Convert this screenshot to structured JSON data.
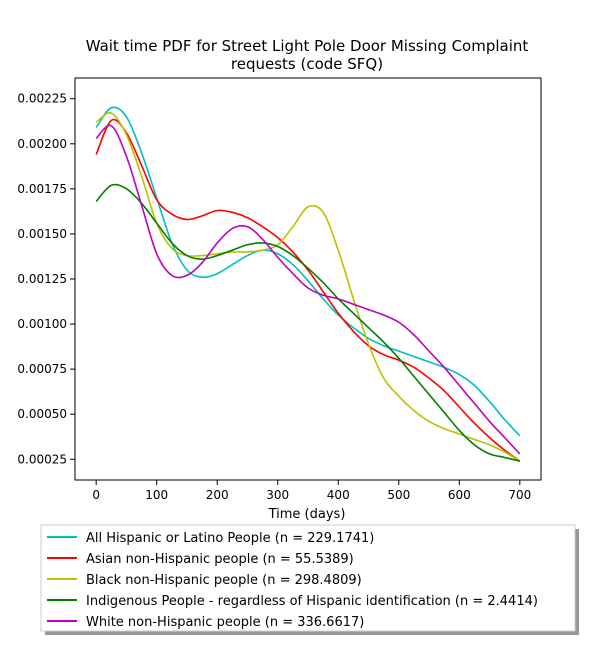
{
  "chart_data": {
    "type": "line",
    "title_line1": "Wait time PDF for Street Light Pole Door Missing Complaint",
    "title_line2": "requests (code SFQ)",
    "xlabel": "Time (days)",
    "ylabel": "",
    "xlim": [
      -35,
      735
    ],
    "ylim": [
      0.000135,
      0.002365
    ],
    "xticks": [
      0,
      100,
      200,
      300,
      400,
      500,
      600,
      700
    ],
    "xtick_labels": [
      "0",
      "100",
      "200",
      "300",
      "400",
      "500",
      "600",
      "700"
    ],
    "yticks": [
      0.00025,
      0.0005,
      0.00075,
      0.001,
      0.00125,
      0.0015,
      0.00175,
      0.002,
      0.00225
    ],
    "ytick_labels": [
      "0.00025",
      "0.00050",
      "0.00075",
      "0.00100",
      "0.00125",
      "0.00150",
      "0.00175",
      "0.00200",
      "0.00225"
    ],
    "grid": false,
    "legend_position": "below-plot",
    "series": [
      {
        "name": "All Hispanic or Latino People (n = 229.1741)",
        "color": "#00bfbf",
        "x": [
          0,
          25,
          50,
          75,
          100,
          125,
          150,
          175,
          200,
          225,
          250,
          275,
          300,
          325,
          350,
          375,
          400,
          425,
          450,
          475,
          500,
          525,
          550,
          575,
          600,
          625,
          650,
          675,
          700
        ],
        "y": [
          0.00209,
          0.0022,
          0.00215,
          0.00195,
          0.0017,
          0.00145,
          0.0013,
          0.00126,
          0.00128,
          0.00133,
          0.00138,
          0.00141,
          0.00139,
          0.00133,
          0.00124,
          0.00114,
          0.00105,
          0.00098,
          0.00092,
          0.00088,
          0.00085,
          0.00082,
          0.00079,
          0.00076,
          0.00072,
          0.00066,
          0.00057,
          0.00047,
          0.00038
        ]
      },
      {
        "name": "Asian non-Hispanic people (n = 55.5389)",
        "color": "#ff0000",
        "x": [
          0,
          25,
          50,
          75,
          100,
          125,
          150,
          175,
          200,
          225,
          250,
          275,
          300,
          325,
          350,
          375,
          400,
          425,
          450,
          475,
          500,
          525,
          550,
          575,
          600,
          625,
          650,
          675,
          700
        ],
        "y": [
          0.00194,
          0.00213,
          0.00206,
          0.00188,
          0.00169,
          0.00161,
          0.00158,
          0.0016,
          0.00163,
          0.00162,
          0.00159,
          0.00154,
          0.00148,
          0.0014,
          0.0013,
          0.00118,
          0.00106,
          0.00096,
          0.00088,
          0.00083,
          0.0008,
          0.00076,
          0.0007,
          0.00063,
          0.00054,
          0.00045,
          0.00037,
          0.0003,
          0.00024
        ]
      },
      {
        "name": "Black non-Hispanic people (n = 298.4809)",
        "color": "#bfbf00",
        "x": [
          0,
          25,
          50,
          75,
          100,
          125,
          150,
          175,
          200,
          225,
          250,
          275,
          300,
          325,
          350,
          375,
          400,
          425,
          450,
          475,
          500,
          525,
          550,
          575,
          600,
          625,
          650,
          675,
          700
        ],
        "y": [
          0.00212,
          0.00217,
          0.00205,
          0.00182,
          0.00156,
          0.00142,
          0.00138,
          0.00138,
          0.00139,
          0.0014,
          0.0014,
          0.00141,
          0.00144,
          0.00154,
          0.00165,
          0.00162,
          0.00141,
          0.00114,
          0.00089,
          0.0007,
          0.0006,
          0.00052,
          0.00046,
          0.00042,
          0.00039,
          0.00036,
          0.00033,
          0.00029,
          0.00024
        ]
      },
      {
        "name": "Indigenous People - regardless of Hispanic identification (n = 2.4414)",
        "color": "#008000",
        "x": [
          0,
          25,
          50,
          75,
          100,
          125,
          150,
          175,
          200,
          225,
          250,
          275,
          300,
          325,
          350,
          375,
          400,
          425,
          450,
          475,
          500,
          525,
          550,
          575,
          600,
          625,
          650,
          675,
          700
        ],
        "y": [
          0.00168,
          0.00177,
          0.00175,
          0.00167,
          0.00156,
          0.00145,
          0.00138,
          0.00136,
          0.00138,
          0.00141,
          0.00144,
          0.00145,
          0.00143,
          0.00138,
          0.00131,
          0.00123,
          0.00114,
          0.00106,
          0.00098,
          0.0009,
          0.00081,
          0.00071,
          0.00061,
          0.00051,
          0.00041,
          0.00033,
          0.00028,
          0.00026,
          0.00024
        ]
      },
      {
        "name": "White non-Hispanic people (n = 336.6617)",
        "color": "#bf00bf",
        "x": [
          0,
          25,
          50,
          75,
          100,
          125,
          150,
          175,
          200,
          225,
          250,
          275,
          300,
          325,
          350,
          375,
          400,
          425,
          450,
          475,
          500,
          525,
          550,
          575,
          600,
          625,
          650,
          675,
          700
        ],
        "y": [
          0.00203,
          0.0021,
          0.00193,
          0.00166,
          0.00139,
          0.00127,
          0.00127,
          0.00134,
          0.00145,
          0.00153,
          0.00154,
          0.00147,
          0.00137,
          0.00128,
          0.0012,
          0.00116,
          0.00114,
          0.00111,
          0.00108,
          0.00105,
          0.00101,
          0.00094,
          0.00085,
          0.00076,
          0.00066,
          0.00056,
          0.00046,
          0.00037,
          0.00028
        ]
      }
    ]
  }
}
